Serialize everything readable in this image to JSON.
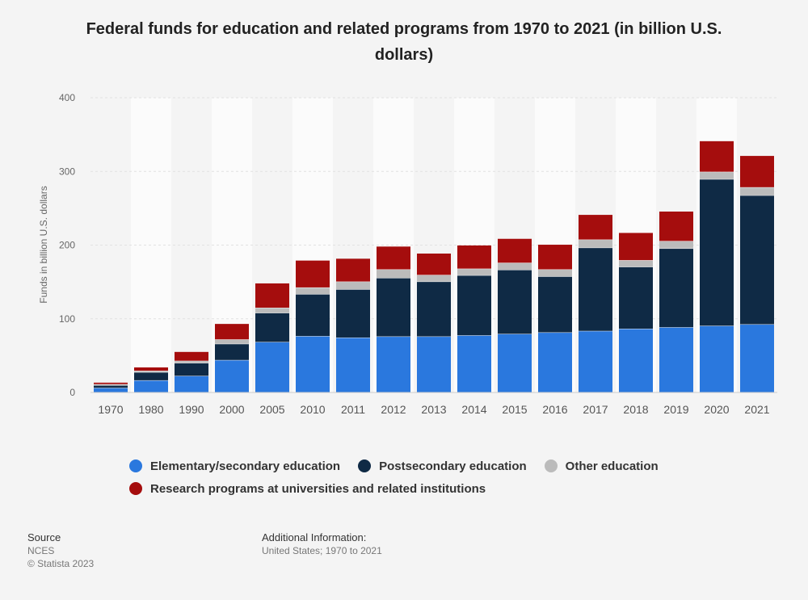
{
  "chart_data": {
    "type": "bar",
    "stacked": true,
    "title": "Federal funds for education and related programs from 1970 to 2021 (in billion U.S. dollars)",
    "xlabel": "",
    "ylabel": "Funds in billion U.S. dollars",
    "ylim": [
      0,
      400
    ],
    "yticks": [
      0,
      100,
      200,
      300,
      400
    ],
    "grid": true,
    "legend_placement": "bottom",
    "categories": [
      "1970",
      "1980",
      "1990",
      "2000",
      "2005",
      "2010",
      "2011",
      "2012",
      "2013",
      "2014",
      "2015",
      "2016",
      "2017",
      "2018",
      "2019",
      "2020",
      "2021"
    ],
    "series": [
      {
        "name": "Elementary/secondary education",
        "color": "#2a78de",
        "values": [
          5.8,
          16,
          22,
          43.5,
          68,
          76,
          74,
          75.5,
          75.5,
          77,
          79,
          81,
          83,
          86,
          88,
          90,
          92
        ]
      },
      {
        "name": "Postsecondary education",
        "color": "#0f2a45",
        "values": [
          3.5,
          11,
          17.5,
          22,
          39.5,
          57,
          65.5,
          79.5,
          74.5,
          81.5,
          87,
          76,
          113,
          84,
          107,
          199,
          175
        ]
      },
      {
        "name": "Other education",
        "color": "#bbbbbb",
        "values": [
          1.5,
          2,
          3,
          6,
          7,
          9,
          10.5,
          11.5,
          9,
          9,
          9.5,
          9.5,
          11,
          9,
          10,
          10,
          11
        ]
      },
      {
        "name": "Research programs at universities and related institutions",
        "color": "#a50d0d",
        "values": [
          2.5,
          5,
          12.5,
          21.5,
          33.5,
          37,
          31.5,
          31.5,
          29.5,
          32,
          33,
          34,
          34,
          37.5,
          40.5,
          42,
          43
        ]
      }
    ]
  },
  "footer": {
    "source_heading": "Source",
    "source_name": "NCES",
    "copyright": "© Statista 2023",
    "info_heading": "Additional Information:",
    "info_text": "United States; 1970 to 2021"
  }
}
